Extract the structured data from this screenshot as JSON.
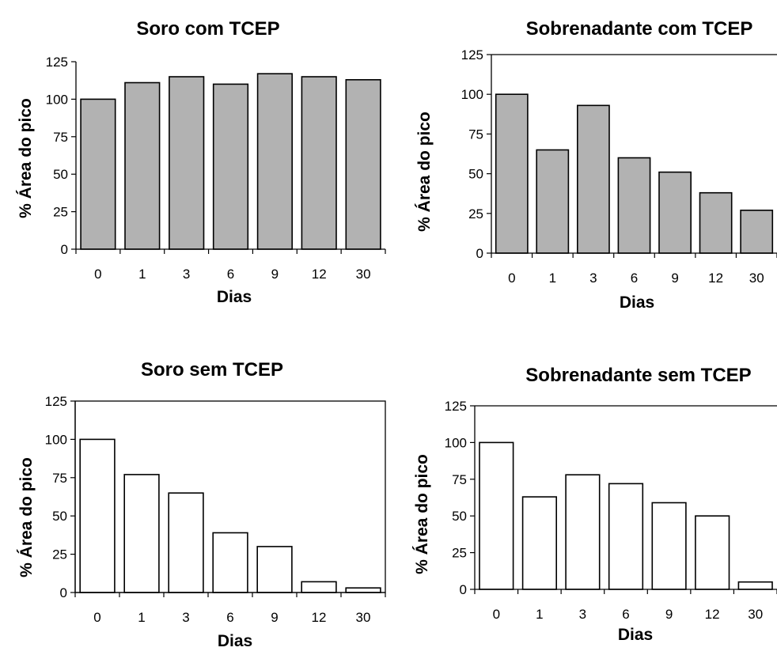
{
  "chart_data": [
    {
      "type": "bar",
      "title": "Soro com TCEP",
      "xlabel": "Dias",
      "ylabel": "% Área do pico",
      "categories": [
        "0",
        "1",
        "3",
        "6",
        "9",
        "12",
        "30"
      ],
      "values": [
        100,
        111,
        115,
        110,
        117,
        115,
        113
      ],
      "ylim": [
        0,
        125
      ],
      "yticks": [
        "0",
        "25",
        "50",
        "75",
        "100",
        "125"
      ],
      "bar_color": "#b2b2b2",
      "plot_border": "none",
      "grid": false
    },
    {
      "type": "bar",
      "title": "Sobrenadante com TCEP",
      "xlabel": "Dias",
      "ylabel": "% Área do pico",
      "categories": [
        "0",
        "1",
        "3",
        "6",
        "9",
        "12",
        "30"
      ],
      "values": [
        100,
        65,
        93,
        60,
        51,
        38,
        27
      ],
      "ylim": [
        0,
        125
      ],
      "yticks": [
        "0",
        "25",
        "50",
        "75",
        "100",
        "125"
      ],
      "bar_color": "#b2b2b2",
      "plot_border": "top",
      "grid": false
    },
    {
      "type": "bar",
      "title": "Soro sem TCEP",
      "xlabel": "Dias",
      "ylabel": "% Área do pico",
      "categories": [
        "0",
        "1",
        "3",
        "6",
        "9",
        "12",
        "30"
      ],
      "values": [
        100,
        77,
        65,
        39,
        30,
        7,
        3
      ],
      "ylim": [
        0,
        125
      ],
      "yticks": [
        "0",
        "25",
        "50",
        "75",
        "100",
        "125"
      ],
      "bar_color": "#ffffff",
      "plot_border": "box",
      "grid": false
    },
    {
      "type": "bar",
      "title": "Sobrenadante sem TCEP",
      "xlabel": "Dias",
      "ylabel": "% Área do pico",
      "categories": [
        "0",
        "1",
        "3",
        "6",
        "9",
        "12",
        "30"
      ],
      "values": [
        100,
        63,
        78,
        72,
        59,
        50,
        5
      ],
      "ylim": [
        0,
        125
      ],
      "yticks": [
        "0",
        "25",
        "50",
        "75",
        "100",
        "125"
      ],
      "bar_color": "#ffffff",
      "plot_border": "top",
      "grid": false
    }
  ]
}
